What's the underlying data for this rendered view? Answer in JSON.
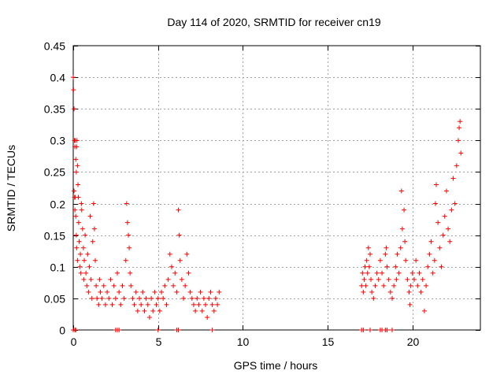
{
  "chart_data": {
    "type": "scatter",
    "title": "Day 114 of 2020, SRMTID for receiver cn19",
    "xlabel": "GPS time / hours",
    "ylabel": "SRMTID / TECUs",
    "xlim": [
      0,
      24
    ],
    "ylim": [
      0,
      0.45
    ],
    "x_ticks": [
      0,
      5,
      10,
      15,
      20
    ],
    "y_ticks": [
      0,
      0.05,
      0.1,
      0.15,
      0.2,
      0.25,
      0.3,
      0.35,
      0.4,
      0.45
    ],
    "x_tick_labels": [
      "0",
      "5",
      "10",
      "15",
      "20"
    ],
    "y_tick_labels": [
      "0",
      "0.05",
      "0.1",
      "0.15",
      "0.2",
      "0.25",
      "0.3",
      "0.35",
      "0.4",
      "0.45"
    ],
    "grid": true,
    "marker": "+",
    "series": [
      {
        "name": "SRMTID",
        "color": "#ff0000",
        "points": [
          [
            0.0,
            0.4
          ],
          [
            0.02,
            0.38
          ],
          [
            0.05,
            0.35
          ],
          [
            0.07,
            0.3
          ],
          [
            0.1,
            0.29
          ],
          [
            0.12,
            0.3
          ],
          [
            0.15,
            0.27
          ],
          [
            0.18,
            0.25
          ],
          [
            0.2,
            0.29
          ],
          [
            0.22,
            0.3
          ],
          [
            0.25,
            0.26
          ],
          [
            0.28,
            0.23
          ],
          [
            0.05,
            0.22
          ],
          [
            0.08,
            0.21
          ],
          [
            0.1,
            0.19
          ],
          [
            0.12,
            0.21
          ],
          [
            0.15,
            0.18
          ],
          [
            0.18,
            0.15
          ],
          [
            0.2,
            0.13
          ],
          [
            0.25,
            0.11
          ],
          [
            0.3,
            0.21
          ],
          [
            0.32,
            0.17
          ],
          [
            0.35,
            0.14
          ],
          [
            0.4,
            0.1
          ],
          [
            0.42,
            0.12
          ],
          [
            0.45,
            0.09
          ],
          [
            0.48,
            0.2
          ],
          [
            0.5,
            0.19
          ],
          [
            0.55,
            0.16
          ],
          [
            0.6,
            0.13
          ],
          [
            0.62,
            0.08
          ],
          [
            0.65,
            0.11
          ],
          [
            0.7,
            0.15
          ],
          [
            0.75,
            0.09
          ],
          [
            0.8,
            0.07
          ],
          [
            0.85,
            0.12
          ],
          [
            0.9,
            0.06
          ],
          [
            0.95,
            0.1
          ],
          [
            1.0,
            0.18
          ],
          [
            1.05,
            0.08
          ],
          [
            1.1,
            0.05
          ],
          [
            1.15,
            0.14
          ],
          [
            1.2,
            0.2
          ],
          [
            1.25,
            0.16
          ],
          [
            1.3,
            0.11
          ],
          [
            1.35,
            0.07
          ],
          [
            1.4,
            0.05
          ],
          [
            1.5,
            0.04
          ],
          [
            1.55,
            0.08
          ],
          [
            1.6,
            0.06
          ],
          [
            1.7,
            0.05
          ],
          [
            1.8,
            0.07
          ],
          [
            1.9,
            0.04
          ],
          [
            2.0,
            0.06
          ],
          [
            2.1,
            0.05
          ],
          [
            2.2,
            0.08
          ],
          [
            2.3,
            0.04
          ],
          [
            2.4,
            0.07
          ],
          [
            2.5,
            0.05
          ],
          [
            2.6,
            0.09
          ],
          [
            2.7,
            0.06
          ],
          [
            2.8,
            0.04
          ],
          [
            2.9,
            0.07
          ],
          [
            3.0,
            0.05
          ],
          [
            3.1,
            0.11
          ],
          [
            3.15,
            0.2
          ],
          [
            3.2,
            0.17
          ],
          [
            3.25,
            0.15
          ],
          [
            3.3,
            0.13
          ],
          [
            3.35,
            0.09
          ],
          [
            3.4,
            0.07
          ],
          [
            3.5,
            0.05
          ],
          [
            3.6,
            0.04
          ],
          [
            3.7,
            0.06
          ],
          [
            3.8,
            0.03
          ],
          [
            3.9,
            0.05
          ],
          [
            4.0,
            0.04
          ],
          [
            4.1,
            0.06
          ],
          [
            4.2,
            0.03
          ],
          [
            4.3,
            0.05
          ],
          [
            4.4,
            0.04
          ],
          [
            4.5,
            0.02
          ],
          [
            4.6,
            0.05
          ],
          [
            4.7,
            0.03
          ],
          [
            4.8,
            0.06
          ],
          [
            4.9,
            0.04
          ],
          [
            5.0,
            0.05
          ],
          [
            5.1,
            0.03
          ],
          [
            5.2,
            0.06
          ],
          [
            5.3,
            0.05
          ],
          [
            5.4,
            0.07
          ],
          [
            5.5,
            0.04
          ],
          [
            5.6,
            0.08
          ],
          [
            5.7,
            0.12
          ],
          [
            5.8,
            0.1
          ],
          [
            5.9,
            0.07
          ],
          [
            6.0,
            0.09
          ],
          [
            6.1,
            0.06
          ],
          [
            6.2,
            0.19
          ],
          [
            6.25,
            0.15
          ],
          [
            6.3,
            0.11
          ],
          [
            6.4,
            0.08
          ],
          [
            6.5,
            0.05
          ],
          [
            6.6,
            0.07
          ],
          [
            6.7,
            0.12
          ],
          [
            6.8,
            0.09
          ],
          [
            6.9,
            0.06
          ],
          [
            7.0,
            0.05
          ],
          [
            7.1,
            0.04
          ],
          [
            7.2,
            0.03
          ],
          [
            7.3,
            0.05
          ],
          [
            7.4,
            0.04
          ],
          [
            7.5,
            0.06
          ],
          [
            7.6,
            0.03
          ],
          [
            7.7,
            0.05
          ],
          [
            7.8,
            0.04
          ],
          [
            7.9,
            0.02
          ],
          [
            8.0,
            0.05
          ],
          [
            8.1,
            0.06
          ],
          [
            8.2,
            0.04
          ],
          [
            8.3,
            0.03
          ],
          [
            8.4,
            0.05
          ],
          [
            8.5,
            0.04
          ],
          [
            8.6,
            0.06
          ],
          [
            17.0,
            0.07
          ],
          [
            17.05,
            0.09
          ],
          [
            17.1,
            0.06
          ],
          [
            17.15,
            0.08
          ],
          [
            17.2,
            0.1
          ],
          [
            17.25,
            0.07
          ],
          [
            17.3,
            0.11
          ],
          [
            17.35,
            0.09
          ],
          [
            17.4,
            0.13
          ],
          [
            17.45,
            0.1
          ],
          [
            17.5,
            0.12
          ],
          [
            17.55,
            0.08
          ],
          [
            17.6,
            0.06
          ],
          [
            17.7,
            0.05
          ],
          [
            17.8,
            0.07
          ],
          [
            17.9,
            0.09
          ],
          [
            18.0,
            0.08
          ],
          [
            18.1,
            0.11
          ],
          [
            18.2,
            0.09
          ],
          [
            18.3,
            0.07
          ],
          [
            18.4,
            0.12
          ],
          [
            18.45,
            0.13
          ],
          [
            18.5,
            0.1
          ],
          [
            18.6,
            0.08
          ],
          [
            18.7,
            0.06
          ],
          [
            18.8,
            0.05
          ],
          [
            18.9,
            0.07
          ],
          [
            19.0,
            0.1
          ],
          [
            19.05,
            0.08
          ],
          [
            19.1,
            0.12
          ],
          [
            19.2,
            0.09
          ],
          [
            19.3,
            0.13
          ],
          [
            19.35,
            0.22
          ],
          [
            19.4,
            0.16
          ],
          [
            19.5,
            0.19
          ],
          [
            19.55,
            0.14
          ],
          [
            19.6,
            0.11
          ],
          [
            19.7,
            0.08
          ],
          [
            19.8,
            0.06
          ],
          [
            19.85,
            0.04
          ],
          [
            19.9,
            0.07
          ],
          [
            20.0,
            0.09
          ],
          [
            20.1,
            0.08
          ],
          [
            20.2,
            0.11
          ],
          [
            20.3,
            0.07
          ],
          [
            20.4,
            0.09
          ],
          [
            20.5,
            0.06
          ],
          [
            20.6,
            0.08
          ],
          [
            20.7,
            0.03
          ],
          [
            20.8,
            0.07
          ],
          [
            20.9,
            0.1
          ],
          [
            21.0,
            0.12
          ],
          [
            21.1,
            0.14
          ],
          [
            21.2,
            0.09
          ],
          [
            21.3,
            0.11
          ],
          [
            21.35,
            0.2
          ],
          [
            21.4,
            0.23
          ],
          [
            21.5,
            0.17
          ],
          [
            21.6,
            0.13
          ],
          [
            21.7,
            0.1
          ],
          [
            21.8,
            0.15
          ],
          [
            21.9,
            0.18
          ],
          [
            22.0,
            0.22
          ],
          [
            22.1,
            0.16
          ],
          [
            22.2,
            0.14
          ],
          [
            22.3,
            0.19
          ],
          [
            22.4,
            0.24
          ],
          [
            22.5,
            0.2
          ],
          [
            22.6,
            0.26
          ],
          [
            22.7,
            0.3
          ],
          [
            22.75,
            0.32
          ],
          [
            22.8,
            0.33
          ],
          [
            22.85,
            0.28
          ]
        ]
      }
    ],
    "zero_points_x": [
      0.0,
      0.1,
      0.15,
      2.5,
      2.6,
      2.7,
      5.0,
      6.1,
      6.2,
      8.2,
      17.0,
      17.1,
      17.5,
      18.1,
      18.2,
      18.4,
      18.5,
      18.8
    ]
  }
}
